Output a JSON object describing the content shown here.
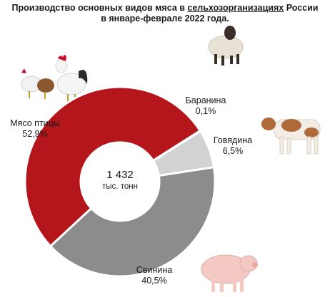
{
  "title": {
    "line1_prefix": "Производство основных видов мяса в ",
    "line1_link": "сельхозорганизациях",
    "line1_suffix": " России",
    "line2": "в январе-феврале 2022 года."
  },
  "center": {
    "value": "1 432",
    "unit": "тыс. тонн"
  },
  "colors": {
    "poultry": "#b4161b",
    "pork": "#8c8c8c",
    "beef": "#d2d2d2",
    "mutton": "#c8c8c8",
    "hole": "#ffffff"
  },
  "icons": [
    "sheep-image",
    "chickens-image",
    "calf-image",
    "pig-image"
  ],
  "chart_data": {
    "type": "pie",
    "donut": true,
    "categories": [
      "Баранина",
      "Говядина",
      "Свинина",
      "Мясо птицы"
    ],
    "values": [
      0.1,
      6.5,
      40.5,
      52.9
    ],
    "value_labels": [
      "0,1%",
      "6,5%",
      "40,5%",
      "52,9%"
    ],
    "total_label": "1 432 тыс. тонн"
  }
}
